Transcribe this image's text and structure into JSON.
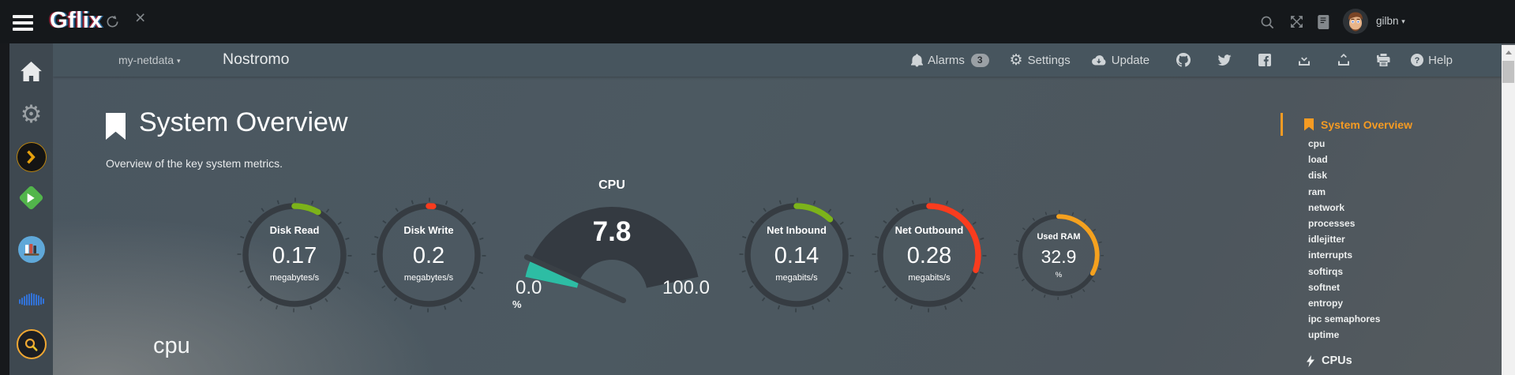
{
  "topbar": {
    "logo": "Gflix",
    "user": "gilbn",
    "caret": "▾",
    "left_icons": [
      "menu-icon",
      "refresh-icon",
      "close-icon"
    ],
    "right_icons": [
      "search-icon",
      "fullscreen-icon",
      "guide-icon",
      "avatar"
    ]
  },
  "navbar": {
    "server": "my-netdata",
    "caret": "▾",
    "hostname": "Nostromo",
    "alarms": "Alarms",
    "alarms_count": "3",
    "settings": "Settings",
    "update": "Update",
    "help": "Help",
    "icons": [
      "bell-icon",
      "gear-icon",
      "cloud-download-icon",
      "github-icon",
      "twitter-icon",
      "facebook-icon",
      "download-icon",
      "upload-icon",
      "printer-icon",
      "help-icon"
    ]
  },
  "app_sidebar": {
    "icons": [
      "home-icon",
      "gear-icon",
      "plex-icon",
      "emby-icon",
      "library-icon",
      "soundwave-icon",
      "search-orange-icon"
    ]
  },
  "main": {
    "title": "System Overview",
    "subtitle": "Overview of the key system metrics.",
    "section_heading": "cpu"
  },
  "gauges": {
    "pies": [
      {
        "name": "Disk Read",
        "value": "0.17",
        "units": "megabytes/s",
        "color": "#7CB31A",
        "pct": 8
      },
      {
        "name": "Disk Write",
        "value": "0.2",
        "units": "megabytes/s",
        "color": "#FA3C1E",
        "pct": 1.5
      },
      {
        "name": "Net Inbound",
        "value": "0.14",
        "units": "megabits/s",
        "color": "#7CB31A",
        "pct": 12
      },
      {
        "name": "Net Outbound",
        "value": "0.28",
        "units": "megabits/s",
        "color": "#FA3C1E",
        "pct": 30
      },
      {
        "name": "Used RAM",
        "value": "32.9",
        "units": "%",
        "color": "#F5A11F",
        "pct": 32.9
      }
    ],
    "cpu": {
      "title": "CPU",
      "value": "7.8",
      "min": "0.0",
      "max": "100.0",
      "units_label": "%",
      "color": "#2DBDA4",
      "pct": 7.8
    }
  },
  "toc": {
    "active_label": "System Overview",
    "items": [
      "cpu",
      "load",
      "disk",
      "ram",
      "network",
      "processes",
      "idlejitter",
      "interrupts",
      "softirqs",
      "softnet",
      "entropy",
      "ipc semaphores",
      "uptime"
    ],
    "section_label": "CPUs"
  },
  "colors": {
    "accent_orange": "#F59B23",
    "green": "#7CB31A",
    "red": "#FA3C1E",
    "teal": "#2DBDA4",
    "amber": "#F5A11F"
  }
}
